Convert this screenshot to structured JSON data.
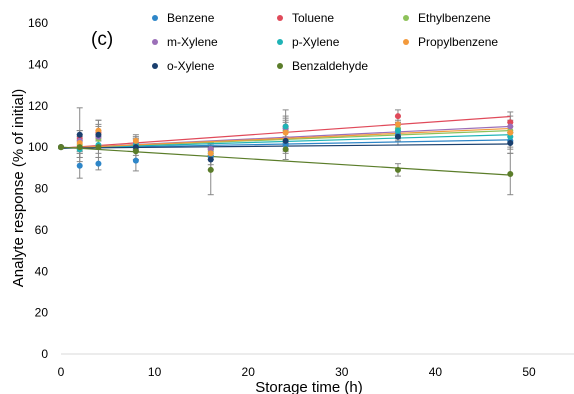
{
  "chart_data": {
    "type": "scatter",
    "panel_label": "(c)",
    "xlabel": "Storage time (h)",
    "ylabel": "Analyte response (% of initial)",
    "xlim": [
      0,
      55
    ],
    "ylim": [
      0,
      160
    ],
    "xticks": [
      0,
      10,
      20,
      30,
      40,
      50
    ],
    "yticks": [
      0,
      20,
      40,
      60,
      80,
      100,
      120,
      140,
      160
    ],
    "grid": false,
    "legend_position": "top",
    "x": [
      0,
      2,
      4,
      8,
      16,
      24,
      36,
      48
    ],
    "series": [
      {
        "name": "Benzene",
        "color": "#2e86c8",
        "values": [
          100,
          91,
          92,
          93.5,
          95.5,
          101,
          106,
          103
        ],
        "errors": [
          0,
          6,
          3,
          5,
          4,
          3,
          3,
          4
        ],
        "trend": [
          99.5,
          103.5
        ]
      },
      {
        "name": "Toluene",
        "color": "#e04a5a",
        "values": [
          100,
          104,
          107,
          102,
          99,
          110,
          115,
          112
        ],
        "errors": [
          0,
          4,
          4,
          3,
          3,
          5,
          3,
          5
        ],
        "trend": [
          99.5,
          114.8
        ]
      },
      {
        "name": "Ethylbenzene",
        "color": "#8ec25a",
        "values": [
          100,
          101,
          104,
          101,
          98,
          108,
          109,
          108
        ],
        "errors": [
          0,
          4,
          4,
          3,
          3,
          5,
          4,
          5
        ],
        "trend": [
          99.5,
          108
        ]
      },
      {
        "name": "m-Xylene",
        "color": "#9b6fb8",
        "values": [
          100,
          103,
          105,
          102,
          99,
          109,
          111,
          110
        ],
        "errors": [
          0,
          5,
          5,
          3,
          3,
          5,
          4,
          5
        ],
        "trend": [
          99.5,
          110
        ]
      },
      {
        "name": "p-Xylene",
        "color": "#1fb3b6",
        "values": [
          100,
          99,
          101,
          101,
          97,
          110,
          108,
          105
        ],
        "errors": [
          0,
          4,
          4,
          3,
          3,
          8,
          4,
          5
        ],
        "trend": [
          99.5,
          106
        ]
      },
      {
        "name": "Propylbenzene",
        "color": "#f39a3c",
        "values": [
          100,
          102,
          108,
          103,
          97,
          107,
          111,
          107
        ],
        "errors": [
          0,
          4,
          5,
          3,
          3,
          5,
          4,
          5
        ],
        "trend": [
          99.5,
          109
        ]
      },
      {
        "name": "o-Xylene",
        "color": "#1a3f6e",
        "values": [
          100,
          106,
          106,
          100,
          94,
          103,
          105,
          102
        ],
        "errors": [
          0,
          13,
          7,
          4,
          5,
          6,
          4,
          5
        ],
        "trend": [
          99.5,
          101.5
        ]
      },
      {
        "name": "Benzaldehyde",
        "color": "#5b7d2a",
        "values": [
          100,
          100,
          100,
          98,
          89,
          99,
          89,
          87
        ],
        "errors": [
          0,
          5,
          5,
          4,
          12,
          5,
          3,
          10
        ],
        "trend": [
          100,
          86.5
        ]
      }
    ]
  }
}
